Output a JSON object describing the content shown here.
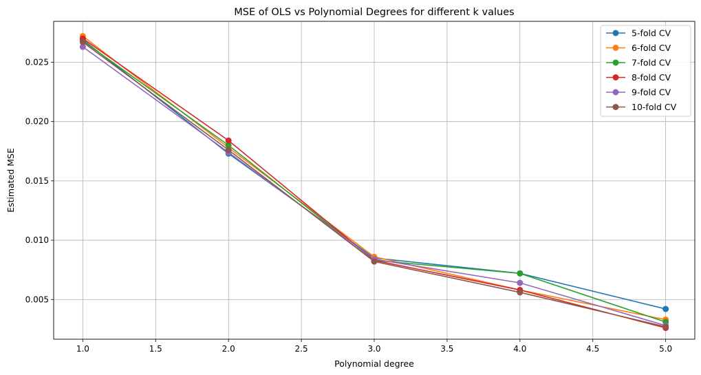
{
  "chart_data": {
    "type": "line",
    "title": "MSE of OLS vs Polynomial Degrees for different k values",
    "xlabel": "Polynomial degree",
    "ylabel": "Estimated MSE",
    "xlim": [
      0.8,
      5.2
    ],
    "ylim": [
      0.00165,
      0.02845
    ],
    "xticks": [
      "1.0",
      "1.5",
      "2.0",
      "2.5",
      "3.0",
      "3.5",
      "4.0",
      "4.5",
      "5.0"
    ],
    "yticks": [
      "0.005",
      "0.010",
      "0.015",
      "0.020",
      "0.025"
    ],
    "grid": true,
    "legend_position": "top-right",
    "x": [
      1,
      2,
      3,
      4,
      5
    ],
    "series": [
      {
        "name": "5-fold CV",
        "color": "#1f77b4",
        "values": [
          0.0269,
          0.0173,
          0.0085,
          0.0072,
          0.0042
        ]
      },
      {
        "name": "6-fold CV",
        "color": "#ff7f0e",
        "values": [
          0.0272,
          0.0178,
          0.0086,
          0.0058,
          0.0033
        ]
      },
      {
        "name": "7-fold CV",
        "color": "#2ca02c",
        "values": [
          0.0268,
          0.018,
          0.0083,
          0.0072,
          0.0031
        ]
      },
      {
        "name": "8-fold CV",
        "color": "#d62728",
        "values": [
          0.027,
          0.0184,
          0.0083,
          0.0058,
          0.0026
        ]
      },
      {
        "name": "9-fold CV",
        "color": "#9467bd",
        "values": [
          0.0263,
          0.0174,
          0.0084,
          0.0064,
          0.0028
        ]
      },
      {
        "name": "10-fold CV",
        "color": "#8c564b",
        "values": [
          0.0267,
          0.0176,
          0.0082,
          0.0056,
          0.0027
        ]
      }
    ]
  }
}
